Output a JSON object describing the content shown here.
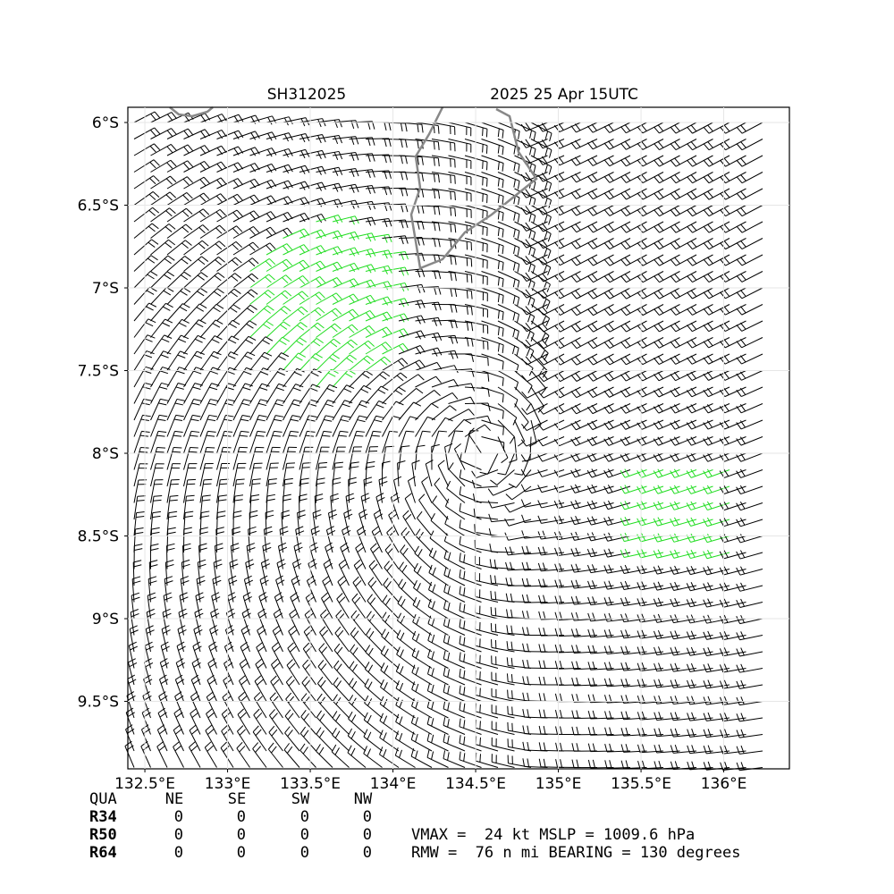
{
  "map": {
    "title_left": "SH312025",
    "title_right": "2025 25 Apr 15UTC",
    "xlim": [
      132.397,
      136.397
    ],
    "ylim": [
      -9.908,
      -5.908
    ],
    "xticks": [
      {
        "value": 132.5,
        "label": "132.5°E"
      },
      {
        "value": 133,
        "label": "133°E"
      },
      {
        "value": 133.5,
        "label": "133.5°E"
      },
      {
        "value": 134,
        "label": "134°E"
      },
      {
        "value": 134.5,
        "label": "134.5°E"
      },
      {
        "value": 135,
        "label": "135°E"
      },
      {
        "value": 135.5,
        "label": "135.5°E"
      },
      {
        "value": 136,
        "label": "136°E"
      }
    ],
    "yticks": [
      {
        "value": -6,
        "label": "6°S"
      },
      {
        "value": -6.5,
        "label": "6.5°S"
      },
      {
        "value": -7,
        "label": "7°S"
      },
      {
        "value": -7.5,
        "label": "7.5°S"
      },
      {
        "value": -8,
        "label": "8°S"
      },
      {
        "value": -8.5,
        "label": "8.5°S"
      },
      {
        "value": -9,
        "label": "9°S"
      },
      {
        "value": -9.5,
        "label": "9.5°S"
      }
    ]
  },
  "table": {
    "header": [
      "QUA",
      "NE",
      "SE",
      "SW",
      "NW"
    ],
    "rows": [
      [
        "R34",
        0,
        0,
        0,
        0
      ],
      [
        "R50",
        0,
        0,
        0,
        0
      ],
      [
        "R64",
        0,
        0,
        0,
        0
      ]
    ]
  },
  "info": [
    "VMAX =  24 kt MSLP = 1009.6 hPa",
    "RMW =  76 n mi BEARING = 130 degrees"
  ]
}
